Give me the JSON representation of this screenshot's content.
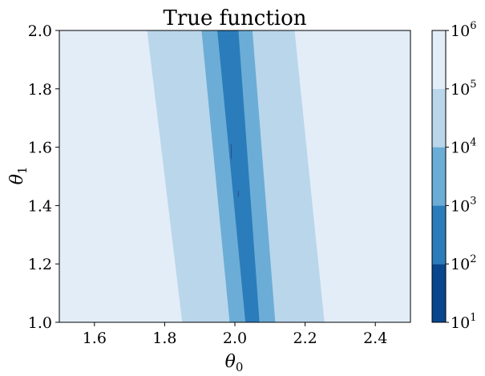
{
  "chart_data": {
    "type": "contourf",
    "title": "True function",
    "xlabel": "θ0",
    "ylabel": "θ1",
    "xlim": [
      1.5,
      2.5
    ],
    "ylim": [
      1.0,
      2.0
    ],
    "x_ticks": [
      1.6,
      1.8,
      2.0,
      2.2,
      2.4
    ],
    "y_ticks": [
      1.0,
      1.2,
      1.4,
      1.6,
      1.8,
      2.0
    ],
    "x_tick_labels": [
      "1.6",
      "1.8",
      "2.0",
      "2.2",
      "2.4"
    ],
    "y_tick_labels": [
      "1.0",
      "1.2",
      "1.4",
      "1.6",
      "1.8",
      "2.0"
    ],
    "colorscale": "log",
    "colorbar": {
      "levels": [
        10,
        100,
        1000,
        10000,
        100000,
        1000000
      ],
      "tick_labels": [
        {
          "base": "10",
          "exp": "1"
        },
        {
          "base": "10",
          "exp": "2"
        },
        {
          "base": "10",
          "exp": "3"
        },
        {
          "base": "10",
          "exp": "4"
        },
        {
          "base": "10",
          "exp": "5"
        },
        {
          "base": "10",
          "exp": "6"
        }
      ],
      "colors": [
        "#08478e",
        "#2b7cbb",
        "#6badd6",
        "#bad6eb",
        "#e2edf8"
      ]
    },
    "bands": [
      {
        "level_range": [
          10000,
          100000
        ],
        "color": "#bad6eb",
        "left_edge": [
          [
            1.85,
            1.0
          ],
          [
            1.75,
            2.0
          ]
        ],
        "right_edge": [
          [
            2.255,
            1.0
          ],
          [
            2.17,
            2.0
          ]
        ]
      },
      {
        "level_range": [
          1000,
          10000
        ],
        "color": "#6badd6",
        "left_edge": [
          [
            1.985,
            1.0
          ],
          [
            1.905,
            2.0
          ]
        ],
        "right_edge": [
          [
            2.115,
            1.0
          ],
          [
            2.05,
            2.0
          ]
        ]
      },
      {
        "level_range": [
          100,
          1000
        ],
        "color": "#2b7cbb",
        "left_edge": [
          [
            2.03,
            1.0
          ],
          [
            1.95,
            2.0
          ]
        ],
        "right_edge": [
          [
            2.07,
            1.0
          ],
          [
            2.01,
            2.0
          ]
        ]
      }
    ],
    "grid": false
  }
}
